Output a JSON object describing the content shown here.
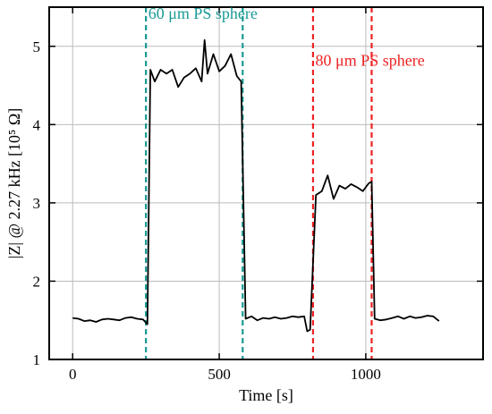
{
  "chart_data": {
    "type": "line",
    "xlabel": "Time [s]",
    "ylabel": "|Z| @ 2.27 kHz [10⁵ Ω]",
    "xlim": [
      -80,
      1400
    ],
    "ylim": [
      1,
      5.5
    ],
    "xticks": [
      0,
      500,
      1000
    ],
    "yticks": [
      1,
      2,
      3,
      4,
      5
    ],
    "grid": true,
    "series": [
      {
        "color": "#000000",
        "x": [
          0,
          20,
          40,
          60,
          80,
          100,
          120,
          140,
          160,
          180,
          200,
          220,
          240,
          255,
          265,
          280,
          300,
          320,
          340,
          360,
          380,
          400,
          420,
          440,
          450,
          460,
          480,
          500,
          520,
          540,
          560,
          575,
          590,
          610,
          630,
          650,
          670,
          690,
          710,
          730,
          750,
          770,
          790,
          800,
          810,
          830,
          850,
          870,
          890,
          910,
          930,
          950,
          970,
          990,
          1010,
          1020,
          1030,
          1050,
          1070,
          1090,
          1110,
          1130,
          1150,
          1170,
          1190,
          1210,
          1230,
          1250
        ],
        "y": [
          1.53,
          1.52,
          1.49,
          1.5,
          1.48,
          1.51,
          1.52,
          1.51,
          1.5,
          1.53,
          1.54,
          1.52,
          1.51,
          1.45,
          4.7,
          4.55,
          4.7,
          4.65,
          4.7,
          4.48,
          4.6,
          4.65,
          4.72,
          4.55,
          5.08,
          4.65,
          4.9,
          4.68,
          4.75,
          4.9,
          4.62,
          4.55,
          1.52,
          1.55,
          1.5,
          1.53,
          1.52,
          1.54,
          1.52,
          1.53,
          1.55,
          1.54,
          1.55,
          1.36,
          1.38,
          3.1,
          3.15,
          3.35,
          3.05,
          3.22,
          3.18,
          3.24,
          3.2,
          3.15,
          3.25,
          3.27,
          1.52,
          1.5,
          1.51,
          1.53,
          1.55,
          1.52,
          1.55,
          1.53,
          1.54,
          1.56,
          1.55,
          1.49
        ]
      }
    ],
    "markers": [
      {
        "x": 250,
        "color": "#1a9a94"
      },
      {
        "x": 580,
        "color": "#1a9a94"
      },
      {
        "x": 820,
        "color": "#ee2222"
      },
      {
        "x": 1020,
        "color": "#ee2222"
      }
    ],
    "annotations": [
      {
        "text": "60 μm PS sphere",
        "color": "#1a9a94",
        "x": 258,
        "y": 5.35
      },
      {
        "text": "80 μm PS sphere",
        "color": "#ee2222",
        "x": 828,
        "y": 4.75
      }
    ]
  }
}
